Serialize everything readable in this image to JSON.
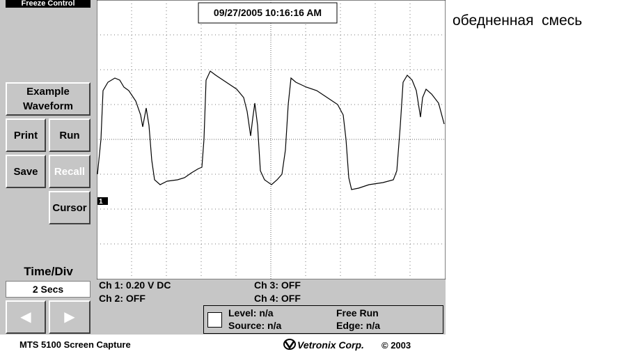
{
  "panel": {
    "title": "Freeze Control",
    "buttons": [
      "Example Waveform",
      "Print",
      "Run",
      "Save",
      "Recall",
      "Cursor"
    ],
    "time_div_label": "Time/Div",
    "time_div_value": "2 Secs"
  },
  "scope": {
    "timestamp": "09/27/2005 10:16:16 AM",
    "channel_marker": "1"
  },
  "annotation": "обедненная  смесь",
  "status": {
    "ch1": "Ch 1: 0.20 V DC",
    "ch2": "Ch 2: OFF",
    "ch3": "Ch 3: OFF",
    "ch4": "Ch 4: OFF",
    "level": "Level: n/a",
    "source": "Source: n/a",
    "mode": "Free Run",
    "edge": "Edge: n/a"
  },
  "footer": {
    "left": "MTS 5100 Screen Capture",
    "brand": "Vetronix Corp.",
    "copyright": "© 2003"
  }
}
